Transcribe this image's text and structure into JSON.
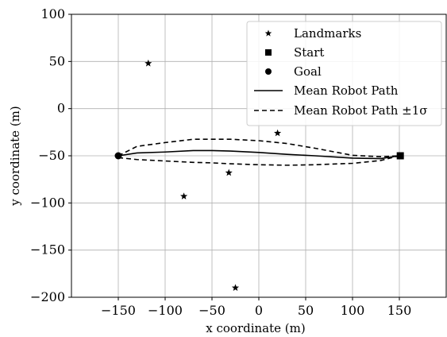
{
  "chart_data": {
    "type": "line",
    "title": "",
    "xlabel": "x coordinate (m)",
    "ylabel": "y coordinate (m)",
    "xlim": [
      -200,
      200
    ],
    "ylim": [
      -200,
      100
    ],
    "xticks": [
      -150,
      -100,
      -50,
      0,
      50,
      100,
      150
    ],
    "yticks": [
      100,
      50,
      0,
      -50,
      -100,
      -150,
      -200
    ],
    "xtick_labels": [
      "−150",
      "−100",
      "−50",
      "0",
      "50",
      "100",
      "150"
    ],
    "ytick_labels": [
      "100",
      "50",
      "0",
      "−50",
      "−100",
      "−150",
      "−200"
    ],
    "grid": true,
    "legend_position": "top-right",
    "legend": [
      {
        "label": "Landmarks",
        "marker": "star"
      },
      {
        "label": "Start",
        "marker": "square"
      },
      {
        "label": "Goal",
        "marker": "circle"
      },
      {
        "label": "Mean Robot Path",
        "style": "solid"
      },
      {
        "label": "Mean Robot Path ±1σ",
        "style": "dashed"
      }
    ],
    "landmarks": [
      {
        "x": -118,
        "y": 48
      },
      {
        "x": 20,
        "y": -26
      },
      {
        "x": -32,
        "y": -68
      },
      {
        "x": -80,
        "y": -93
      },
      {
        "x": -25,
        "y": -190
      }
    ],
    "start": {
      "x": 151,
      "y": -50
    },
    "goal": {
      "x": -150,
      "y": -50
    },
    "series": [
      {
        "style": "solid",
        "x": [
          -150,
          -130,
          -100,
          -70,
          -50,
          -30,
          0,
          30,
          60,
          100,
          130,
          150
        ],
        "y": [
          -50,
          -47,
          -46,
          -44.5,
          -44.5,
          -45,
          -46.5,
          -48.5,
          -50,
          -52.5,
          -53,
          -50
        ]
      },
      {
        "style": "dashed",
        "x": [
          -150,
          -130,
          -100,
          -70,
          -50,
          -30,
          0,
          30,
          60,
          100,
          130,
          150
        ],
        "y": [
          -50,
          -40,
          -36,
          -32.5,
          -32.5,
          -32.5,
          -34,
          -37,
          -42,
          -49.5,
          -51,
          -50
        ]
      },
      {
        "style": "dashed",
        "x": [
          -150,
          -130,
          -100,
          -70,
          -50,
          -30,
          0,
          30,
          60,
          100,
          130,
          150
        ],
        "y": [
          -52,
          -54,
          -55.5,
          -57,
          -57.5,
          -58.5,
          -59.5,
          -60,
          -59.5,
          -58,
          -55,
          -50
        ]
      }
    ]
  }
}
